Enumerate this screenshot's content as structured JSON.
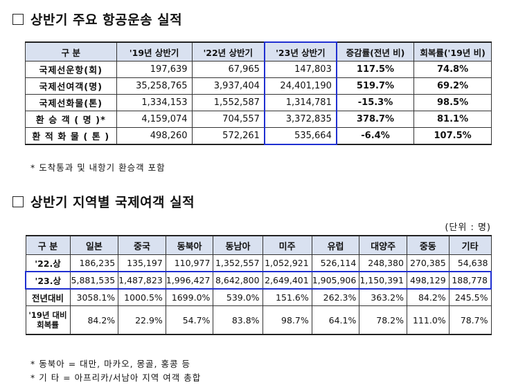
{
  "section1": {
    "title": "상반기 주요 항공운송 실적",
    "headers": [
      "구  분",
      "'19년 상반기",
      "'22년 상반기",
      "'23년 상반기",
      "증감률(전년 비)",
      "회복률('19년 비)"
    ],
    "rows": [
      {
        "label": "국제선운항(회)",
        "v19": "197,639",
        "v22": "67,965",
        "v23": "147,803",
        "change": "117.5%",
        "recovery": "74.8%"
      },
      {
        "label": "국제선여객(명)",
        "v19": "35,258,765",
        "v22": "3,937,404",
        "v23": "24,401,190",
        "change": "519.7%",
        "recovery": "69.2%"
      },
      {
        "label": "국제선화물(톤)",
        "v19": "1,334,153",
        "v22": "1,552,587",
        "v23": "1,314,781",
        "change": "-15.3%",
        "recovery": "98.5%"
      },
      {
        "label": "환 승 객 ( 명 )*",
        "v19": "4,159,074",
        "v22": "704,557",
        "v23": "3,372,835",
        "change": "378.7%",
        "recovery": "81.1%"
      },
      {
        "label": "환 적 화 물 ( 톤 )",
        "v19": "498,260",
        "v22": "572,261",
        "v23": "535,664",
        "change": "-6.4%",
        "recovery": "107.5%"
      }
    ],
    "note": "* 도착통과 및 내항기 환승객 포함"
  },
  "section2": {
    "title": "상반기 지역별 국제여객 실적",
    "unit": "(단위 : 명)",
    "headers": [
      "구 분",
      "일본",
      "중국",
      "동북아",
      "동남아",
      "미주",
      "유럽",
      "대양주",
      "중동",
      "기타"
    ],
    "rows": [
      {
        "label": "'22.상",
        "values": [
          "186,235",
          "135,197",
          "110,977",
          "1,352,557",
          "1,052,921",
          "526,114",
          "248,380",
          "270,385",
          "54,638"
        ]
      },
      {
        "label": "'23.상",
        "values": [
          "5,881,535",
          "1,487,823",
          "1,996,427",
          "8,642,800",
          "2,649,401",
          "1,905,906",
          "1,150,391",
          "498,129",
          "188,778"
        ]
      },
      {
        "label": "전년대비",
        "values": [
          "3058.1%",
          "1000.5%",
          "1699.0%",
          "539.0%",
          "151.6%",
          "262.3%",
          "363.2%",
          "84.2%",
          "245.5%"
        ]
      },
      {
        "label_line1": "'19년 대비",
        "label_line2": "회복률",
        "values": [
          "84.2%",
          "22.9%",
          "54.7%",
          "83.8%",
          "98.7%",
          "64.1%",
          "78.2%",
          "111.0%",
          "78.7%"
        ]
      }
    ],
    "notes": [
      "* 동북아 = 대만, 마카오, 몽골, 홍콩 등",
      "* 기  타 = 아프리카/서남아 지역 여객 총합"
    ]
  },
  "colors": {
    "header_bg": "#d9e1f0",
    "highlight": "#1f2fd0"
  }
}
